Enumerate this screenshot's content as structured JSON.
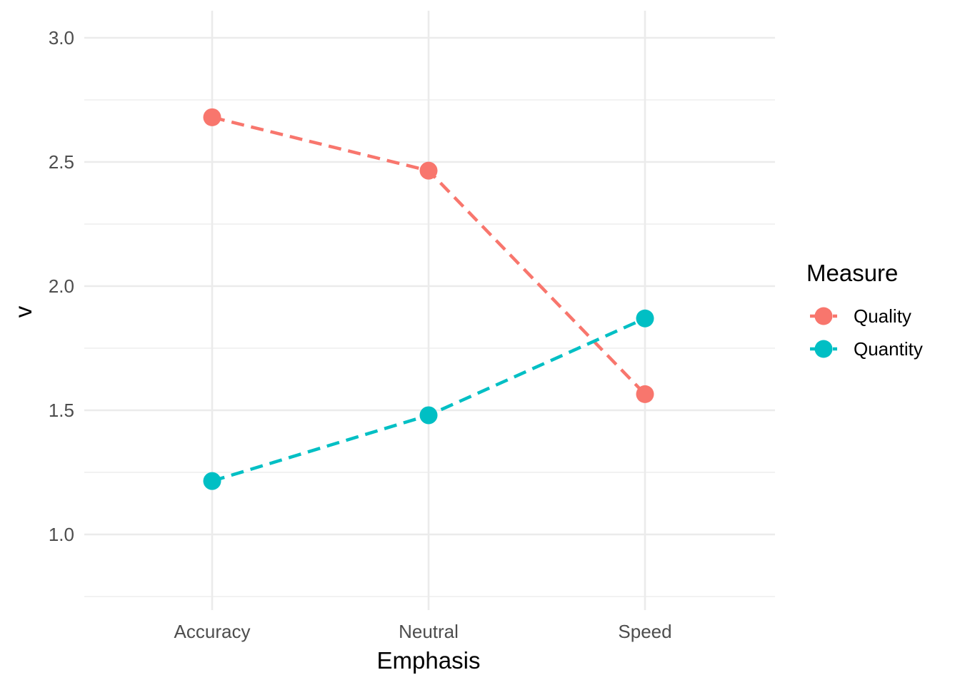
{
  "chart_data": {
    "type": "line",
    "title": "",
    "xlabel": "Emphasis",
    "ylabel": "v",
    "categories": [
      "Accuracy",
      "Neutral",
      "Speed"
    ],
    "ylim": [
      0.75,
      3.1
    ],
    "yticks": [
      1.0,
      1.5,
      2.0,
      2.5,
      3.0
    ],
    "ytick_labels": [
      "1.0",
      "1.5",
      "2.0",
      "2.5",
      "3.0"
    ],
    "grid": true,
    "line_style": "dashed",
    "legend": {
      "title": "Measure",
      "placement": "right"
    },
    "series": [
      {
        "name": "Quality",
        "color": "#F8766D",
        "values": [
          2.68,
          2.465,
          1.565
        ]
      },
      {
        "name": "Quantity",
        "color": "#00BFC4",
        "values": [
          1.215,
          1.48,
          1.87
        ]
      }
    ]
  }
}
